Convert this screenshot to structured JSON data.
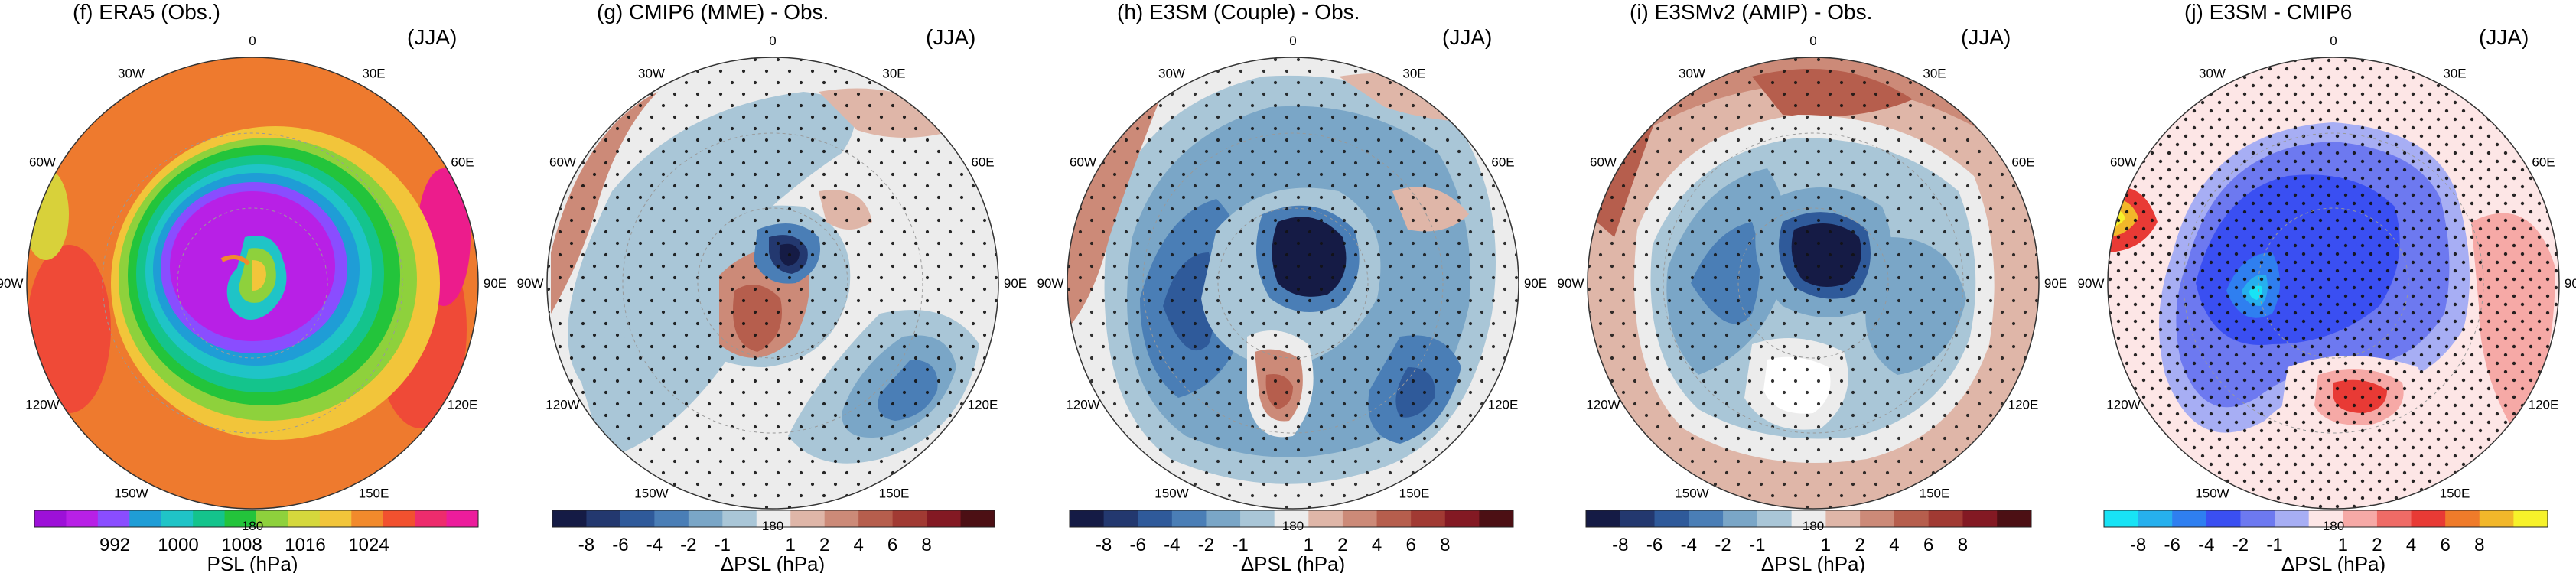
{
  "figure": {
    "panels": [
      {
        "id": "f",
        "title": "(f) ERA5 (Obs.)",
        "season": "(JJA)",
        "field": "absolute",
        "colorbar": {
          "colors": [
            "#9d10d8",
            "#b820e6",
            "#8a4dff",
            "#1f9dd6",
            "#1fc4c7",
            "#14c48c",
            "#23c43b",
            "#8ed13c",
            "#d5d83c",
            "#f2c53a",
            "#f28a2c",
            "#f2512f",
            "#ee2c6d",
            "#ec1c9c"
          ],
          "tick_labels": [
            "992",
            "1000",
            "1008",
            "1016",
            "1024"
          ],
          "label": "PSL (hPa)"
        }
      },
      {
        "id": "g",
        "title": "(g) CMIP6 (MME) - Obs.",
        "season": "(JJA)",
        "field": "diff",
        "colorbar": {
          "colors": [
            "#151b45",
            "#23386f",
            "#2f5a9a",
            "#4a7eb6",
            "#7aa6c7",
            "#a9c6d7",
            "#ececec",
            "#dfb6a8",
            "#cc8a78",
            "#b65e4d",
            "#a13a33",
            "#831923",
            "#4c0f14"
          ],
          "tick_labels": [
            "-8",
            "-6",
            "-4",
            "-2",
            "-1",
            "1",
            "2",
            "4",
            "6",
            "8"
          ],
          "label": "ΔPSL (hPa)"
        }
      },
      {
        "id": "h",
        "title": "(h) E3SM (Couple) - Obs.",
        "season": "(JJA)",
        "field": "diff",
        "colorbar": {
          "colors": [
            "#151b45",
            "#23386f",
            "#2f5a9a",
            "#4a7eb6",
            "#7aa6c7",
            "#a9c6d7",
            "#ececec",
            "#dfb6a8",
            "#cc8a78",
            "#b65e4d",
            "#a13a33",
            "#831923",
            "#4c0f14"
          ],
          "tick_labels": [
            "-8",
            "-6",
            "-4",
            "-2",
            "-1",
            "1",
            "2",
            "4",
            "6",
            "8"
          ],
          "label": "ΔPSL (hPa)"
        }
      },
      {
        "id": "i",
        "title": "(i) E3SMv2 (AMIP) - Obs.",
        "season": "(JJA)",
        "field": "diff",
        "colorbar": {
          "colors": [
            "#151b45",
            "#23386f",
            "#2f5a9a",
            "#4a7eb6",
            "#7aa6c7",
            "#a9c6d7",
            "#ececec",
            "#dfb6a8",
            "#cc8a78",
            "#b65e4d",
            "#a13a33",
            "#831923",
            "#4c0f14"
          ],
          "tick_labels": [
            "-8",
            "-6",
            "-4",
            "-2",
            "-1",
            "1",
            "2",
            "4",
            "6",
            "8"
          ],
          "label": "ΔPSL (hPa)"
        }
      },
      {
        "id": "j",
        "title": "(j) E3SM - CMIP6",
        "season": "(JJA)",
        "field": "model-diff",
        "colorbar": {
          "colors": [
            "#18e3f5",
            "#26b0ee",
            "#2f7ff0",
            "#3a4ff2",
            "#6d79f0",
            "#a7aef4",
            "#fde6e6",
            "#f6a9a6",
            "#ef6b66",
            "#e83a35",
            "#ef7b2a",
            "#f2b72a",
            "#f7f22a"
          ],
          "tick_labels": [
            "-8",
            "-6",
            "-4",
            "-2",
            "-1",
            "1",
            "2",
            "4",
            "6",
            "8"
          ],
          "label": "ΔPSL (hPa)"
        }
      }
    ],
    "lon_labels": [
      "0",
      "30E",
      "60E",
      "90E",
      "120E",
      "150E",
      "180",
      "150W",
      "120W",
      "90W",
      "60W",
      "30W"
    ]
  }
}
